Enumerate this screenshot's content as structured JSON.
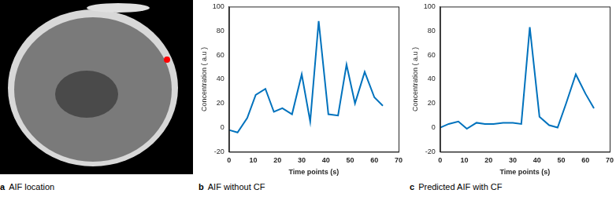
{
  "image_panel": {
    "panel_label": "a",
    "caption": "AIF location"
  },
  "chart_data": [
    {
      "type": "line",
      "panel_label": "b",
      "title": "AIF without CF",
      "x_label": "Time points (s)",
      "y_label": "Concentration ( a.u )",
      "x": [
        0,
        3.5,
        7.5,
        11,
        15,
        18.5,
        22,
        26,
        30,
        33.5,
        37,
        41,
        45,
        48.5,
        52,
        56,
        60,
        63.5
      ],
      "values": [
        -2,
        -4,
        8,
        27,
        32,
        13,
        16,
        11,
        44,
        5,
        88,
        11,
        10,
        52,
        20,
        46,
        25,
        18
      ],
      "color": "#0072bd",
      "xlim": [
        0,
        70
      ],
      "xticks": [
        0,
        10,
        20,
        30,
        40,
        50,
        60,
        70
      ],
      "ylim": [
        -20,
        100
      ],
      "yticks": [
        -20,
        0,
        20,
        40,
        60,
        80,
        100
      ],
      "grid": false
    },
    {
      "type": "line",
      "panel_label": "c",
      "title": "Predicted AIF with CF",
      "x_label": "Time points (s)",
      "y_label": "Concentration ( a.u )",
      "x": [
        0,
        3.5,
        7.5,
        11,
        15,
        18.5,
        22,
        26,
        30,
        33.5,
        37,
        41,
        45,
        48.5,
        52,
        56,
        60,
        63.5
      ],
      "values": [
        0,
        3,
        5,
        -1,
        4,
        3,
        3,
        4,
        4,
        3,
        83,
        9,
        2,
        0,
        20,
        44,
        28,
        16
      ],
      "color": "#0072bd",
      "xlim": [
        0,
        70
      ],
      "xticks": [
        0,
        10,
        20,
        30,
        40,
        50,
        60,
        70
      ],
      "ylim": [
        -20,
        100
      ],
      "yticks": [
        -20,
        0,
        20,
        40,
        60,
        80,
        100
      ],
      "grid": false
    }
  ]
}
